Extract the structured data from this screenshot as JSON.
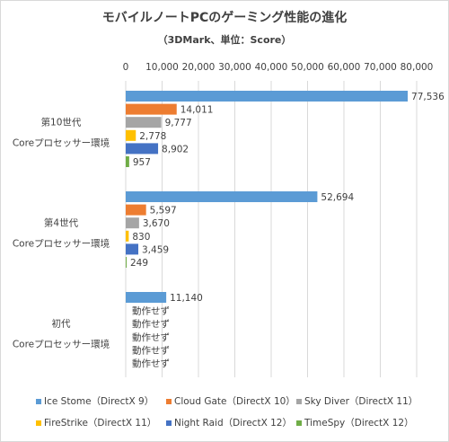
{
  "chart_data": {
    "type": "bar",
    "orientation": "horizontal",
    "title": "モバイルノートPCのゲーミング性能の進化",
    "subtitle": "（3DMark、単位：Score）",
    "xlim": [
      0,
      80000
    ],
    "xticks": [
      0,
      10000,
      20000,
      30000,
      40000,
      50000,
      60000,
      70000,
      80000
    ],
    "xtick_labels": [
      "0",
      "10,000",
      "20,000",
      "30,000",
      "40,000",
      "50,000",
      "60,000",
      "70,000",
      "80,000"
    ],
    "grid": true,
    "legend_position": "bottom",
    "categories": [
      [
        "第10世代",
        "Coreプロセッサー環境"
      ],
      [
        "第4世代",
        "Coreプロセッサー環境"
      ],
      [
        "初代",
        "Coreプロセッサー環境"
      ]
    ],
    "series": [
      {
        "name": "Ice Stome（DirectX 9）",
        "color": "#5b9bd5",
        "values": [
          77536,
          52694,
          11140
        ],
        "labels": [
          "77,536",
          "52,694",
          "11,140"
        ]
      },
      {
        "name": "Cloud Gate（DirectX 10）",
        "color": "#ed7d31",
        "values": [
          14011,
          5597,
          null
        ],
        "labels": [
          "14,011",
          "5,597",
          "動作せず"
        ]
      },
      {
        "name": "Sky Diver（DirectX 11）",
        "color": "#a5a5a5",
        "values": [
          9777,
          3670,
          null
        ],
        "labels": [
          "9,777",
          "3,670",
          "動作せず"
        ]
      },
      {
        "name": "FireStrike（DirectX 11）",
        "color": "#ffc000",
        "values": [
          2778,
          830,
          null
        ],
        "labels": [
          "2,778",
          "830",
          "動作せず"
        ]
      },
      {
        "name": "Night Raid（DirectX 12）",
        "color": "#4472c4",
        "values": [
          8902,
          3459,
          null
        ],
        "labels": [
          "8,902",
          "3,459",
          "動作せず"
        ]
      },
      {
        "name": "TimeSpy（DirectX 12）",
        "color": "#70ad47",
        "values": [
          957,
          249,
          null
        ],
        "labels": [
          "957",
          "249",
          "動作せず"
        ]
      }
    ]
  }
}
